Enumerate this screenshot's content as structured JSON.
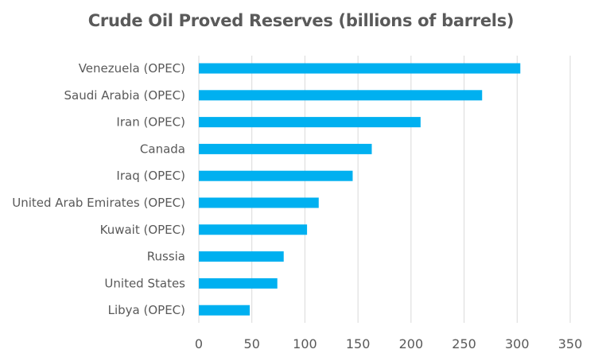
{
  "chart_data": {
    "type": "bar",
    "orientation": "horizontal",
    "title": "Crude Oil Proved Reserves (billions of barrels)",
    "categories": [
      "Venezuela (OPEC)",
      "Saudi Arabia (OPEC)",
      "Iran (OPEC)",
      "Canada",
      "Iraq (OPEC)",
      "United Arab Emirates (OPEC)",
      "Kuwait (OPEC)",
      "Russia",
      "United States",
      "Libya (OPEC)"
    ],
    "values": [
      303,
      267,
      209,
      163,
      145,
      113,
      102,
      80,
      74,
      48
    ],
    "xlim": [
      0,
      350
    ],
    "xticks": [
      "0",
      "50",
      "100",
      "150",
      "200",
      "250",
      "300",
      "350"
    ],
    "grid": "vertical",
    "legend": "none",
    "bar_color": "#00b0f0"
  }
}
